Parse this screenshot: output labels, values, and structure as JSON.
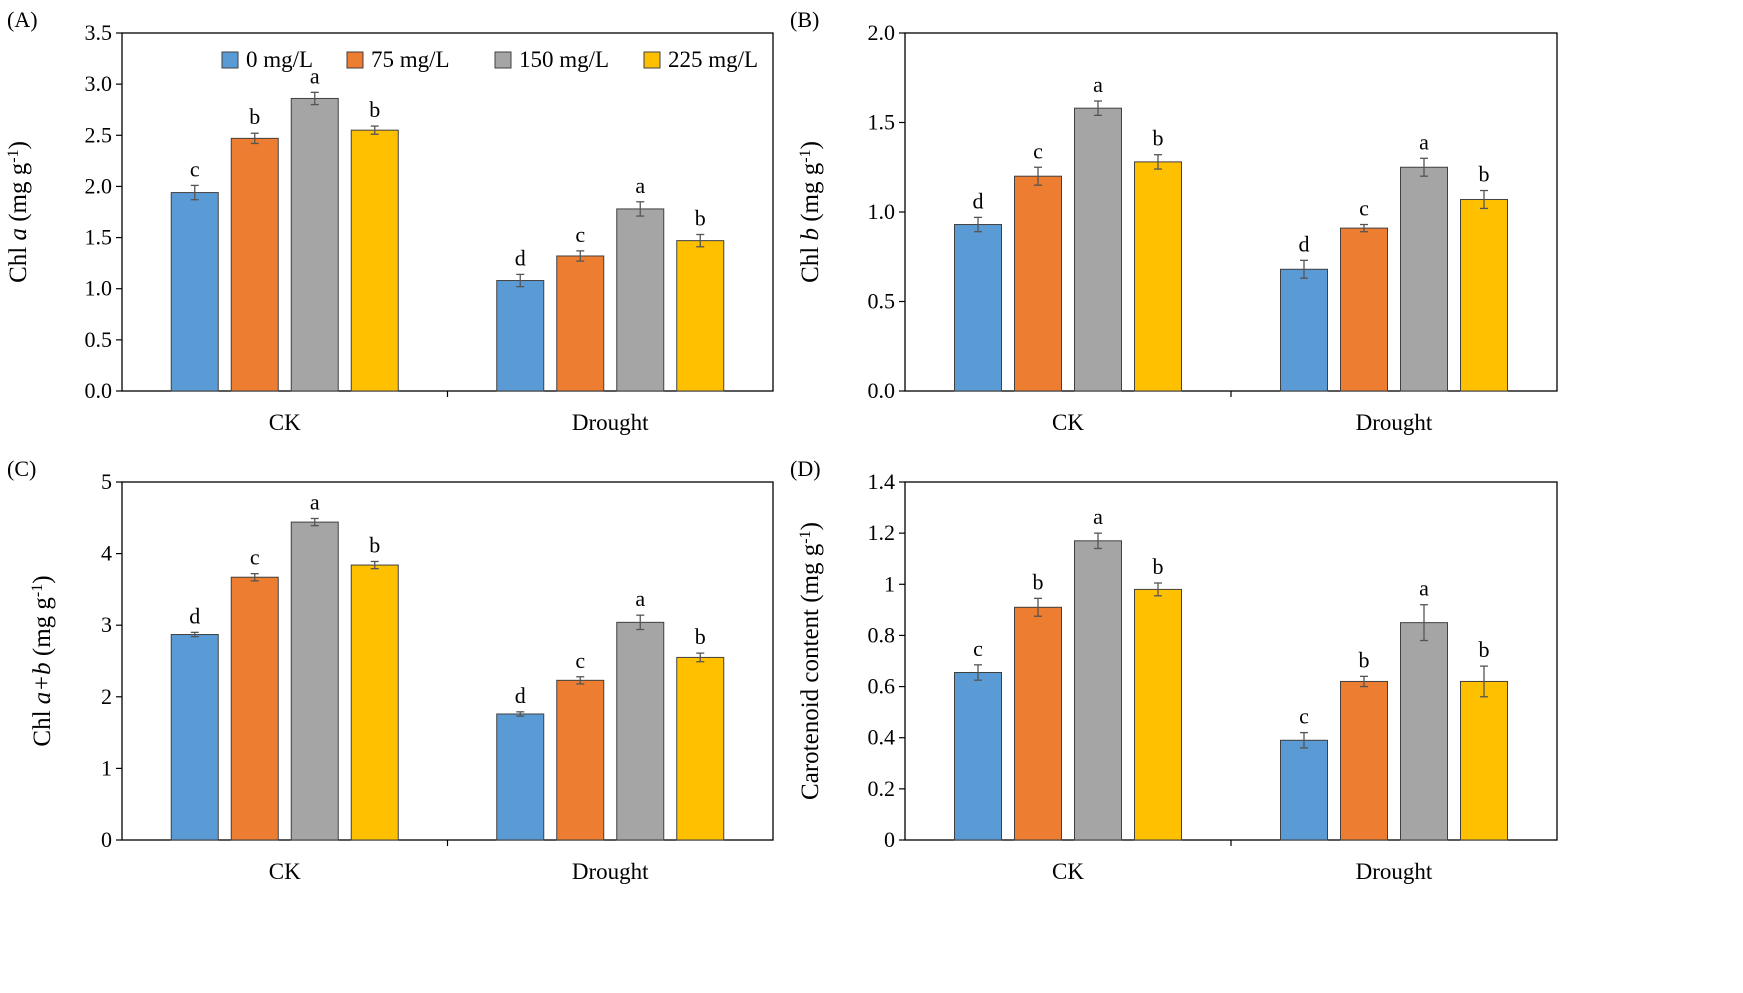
{
  "colors": {
    "series": [
      "#5b9bd5",
      "#ed7d31",
      "#a5a5a5",
      "#ffc000"
    ],
    "bar_stroke": "#404040",
    "error_bar": "#555555",
    "axis": "#000000"
  },
  "legend": {
    "placement": "top-left inside panel A",
    "entries": [
      "0 mg/L",
      "75 mg/L",
      "150 mg/L",
      "225 mg/L"
    ]
  },
  "chart_data": [
    {
      "panel": "(A)",
      "type": "bar",
      "categories": [
        "CK",
        "Drought"
      ],
      "ylabel_prefix": "Chl ",
      "ylabel_italic": "a",
      "ylabel_suffix": " (mg g",
      "ylabel_sup": "-1",
      "ylabel_close": ")",
      "ylim": [
        0,
        3.5
      ],
      "yticks": [
        "0.0",
        "0.5",
        "1.0",
        "1.5",
        "2.0",
        "2.5",
        "3.0",
        "3.5"
      ],
      "series": [
        {
          "name": "0 mg/L",
          "values": [
            1.94,
            1.08
          ],
          "errors": [
            0.07,
            0.06
          ],
          "letters": [
            "c",
            "d"
          ]
        },
        {
          "name": "75 mg/L",
          "values": [
            2.47,
            1.32
          ],
          "errors": [
            0.05,
            0.05
          ],
          "letters": [
            "b",
            "c"
          ]
        },
        {
          "name": "150 mg/L",
          "values": [
            2.86,
            1.78
          ],
          "errors": [
            0.06,
            0.07
          ],
          "letters": [
            "a",
            "a"
          ]
        },
        {
          "name": "225 mg/L",
          "values": [
            2.55,
            1.47
          ],
          "errors": [
            0.04,
            0.06
          ],
          "letters": [
            "b",
            "b"
          ]
        }
      ]
    },
    {
      "panel": "(B)",
      "type": "bar",
      "categories": [
        "CK",
        "Drought"
      ],
      "ylabel_prefix": "Chl ",
      "ylabel_italic": "b",
      "ylabel_suffix": " (mg g",
      "ylabel_sup": "-1",
      "ylabel_close": ")",
      "ylim": [
        0,
        2.0
      ],
      "yticks": [
        "0.0",
        "0.5",
        "1.0",
        "1.5",
        "2.0"
      ],
      "series": [
        {
          "name": "0 mg/L",
          "values": [
            0.93,
            0.68
          ],
          "errors": [
            0.04,
            0.05
          ],
          "letters": [
            "d",
            "d"
          ]
        },
        {
          "name": "75 mg/L",
          "values": [
            1.2,
            0.91
          ],
          "errors": [
            0.05,
            0.02
          ],
          "letters": [
            "c",
            "c"
          ]
        },
        {
          "name": "150 mg/L",
          "values": [
            1.58,
            1.25
          ],
          "errors": [
            0.04,
            0.05
          ],
          "letters": [
            "a",
            "a"
          ]
        },
        {
          "name": "225 mg/L",
          "values": [
            1.28,
            1.07
          ],
          "errors": [
            0.04,
            0.05
          ],
          "letters": [
            "b",
            "b"
          ]
        }
      ]
    },
    {
      "panel": "(C)",
      "type": "bar",
      "categories": [
        "CK",
        "Drought"
      ],
      "ylabel_prefix": "Chl ",
      "ylabel_italic": "a+b",
      "ylabel_suffix": " (mg g",
      "ylabel_sup": "-1",
      "ylabel_close": ")",
      "ylim": [
        0,
        5
      ],
      "yticks": [
        "0",
        "1",
        "2",
        "3",
        "4",
        "5"
      ],
      "series": [
        {
          "name": "0 mg/L",
          "values": [
            2.87,
            1.76
          ],
          "errors": [
            0.03,
            0.03
          ],
          "letters": [
            "d",
            "d"
          ]
        },
        {
          "name": "75 mg/L",
          "values": [
            3.67,
            2.23
          ],
          "errors": [
            0.05,
            0.05
          ],
          "letters": [
            "c",
            "c"
          ]
        },
        {
          "name": "150 mg/L",
          "values": [
            4.44,
            3.04
          ],
          "errors": [
            0.05,
            0.1
          ],
          "letters": [
            "a",
            "a"
          ]
        },
        {
          "name": "225 mg/L",
          "values": [
            3.84,
            2.55
          ],
          "errors": [
            0.05,
            0.06
          ],
          "letters": [
            "b",
            "b"
          ]
        }
      ]
    },
    {
      "panel": "(D)",
      "type": "bar",
      "categories": [
        "CK",
        "Drought"
      ],
      "ylabel_prefix": "Carotenoid  content",
      "ylabel_italic": "",
      "ylabel_suffix": " (mg g",
      "ylabel_sup": "-1",
      "ylabel_close": ")",
      "ylim": [
        0,
        1.4
      ],
      "yticks": [
        "0",
        "0.2",
        "0.4",
        "0.6",
        "0.8",
        "1",
        "1.2",
        "1.4"
      ],
      "series": [
        {
          "name": "0 mg/L",
          "values": [
            0.655,
            0.39
          ],
          "errors": [
            0.03,
            0.03
          ],
          "letters": [
            "c",
            "c"
          ]
        },
        {
          "name": "75 mg/L",
          "values": [
            0.91,
            0.62
          ],
          "errors": [
            0.035,
            0.02
          ],
          "letters": [
            "b",
            "b"
          ]
        },
        {
          "name": "150 mg/L",
          "values": [
            1.17,
            0.85
          ],
          "errors": [
            0.03,
            0.07
          ],
          "letters": [
            "a",
            "a"
          ]
        },
        {
          "name": "225 mg/L",
          "values": [
            0.98,
            0.62
          ],
          "errors": [
            0.025,
            0.06
          ],
          "letters": [
            "b",
            "b"
          ]
        }
      ]
    }
  ]
}
